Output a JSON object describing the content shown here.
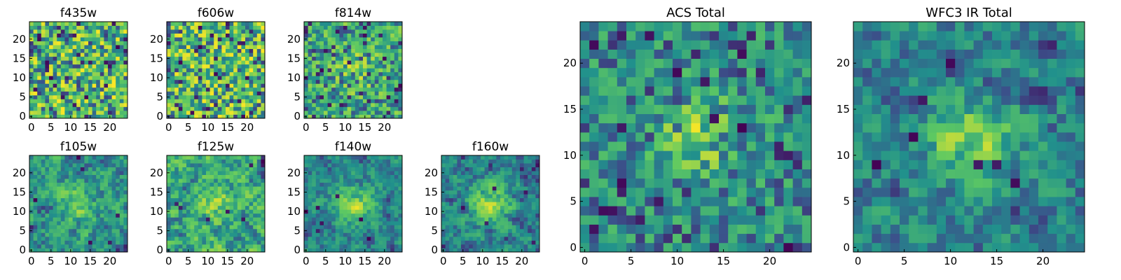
{
  "colormap": [
    "#440154",
    "#3b528b",
    "#21918c",
    "#5ec962",
    "#fde725"
  ],
  "chart_data": [
    {
      "type": "heatmap",
      "title": "f435w",
      "size": 25,
      "xticks": [
        0,
        5,
        10,
        15,
        20
      ],
      "yticks": [
        0,
        5,
        10,
        15,
        20
      ],
      "seed": 11,
      "smooth": 0,
      "blob": 0.0,
      "bias": 0.55
    },
    {
      "type": "heatmap",
      "title": "f606w",
      "size": 25,
      "xticks": [
        0,
        5,
        10,
        15,
        20
      ],
      "yticks": [
        0,
        5,
        10,
        15,
        20
      ],
      "seed": 23,
      "smooth": 0,
      "blob": 0.0,
      "bias": 0.55
    },
    {
      "type": "heatmap",
      "title": "f814w",
      "size": 25,
      "xticks": [
        0,
        5,
        10,
        15,
        20
      ],
      "yticks": [
        0,
        5,
        10,
        15,
        20
      ],
      "seed": 37,
      "smooth": 0,
      "blob": 0.15,
      "bias": 0.55
    },
    {
      "type": "heatmap",
      "title": "f105w",
      "size": 25,
      "xticks": [
        0,
        5,
        10,
        15,
        20
      ],
      "yticks": [
        0,
        5,
        10,
        15,
        20
      ],
      "seed": 41,
      "smooth": 1,
      "blob": 0.25,
      "bias": 0.5
    },
    {
      "type": "heatmap",
      "title": "f125w",
      "size": 25,
      "xticks": [
        0,
        5,
        10,
        15,
        20
      ],
      "yticks": [
        0,
        5,
        10,
        15,
        20
      ],
      "seed": 53,
      "smooth": 1,
      "blob": 0.15,
      "bias": 0.5
    },
    {
      "type": "heatmap",
      "title": "f140w",
      "size": 25,
      "xticks": [
        0,
        5,
        10,
        15,
        20
      ],
      "yticks": [
        0,
        5,
        10,
        15,
        20
      ],
      "seed": 67,
      "smooth": 1,
      "blob": 0.35,
      "bias": 0.5
    },
    {
      "type": "heatmap",
      "title": "f160w",
      "size": 25,
      "xticks": [
        0,
        5,
        10,
        15,
        20
      ],
      "yticks": [
        0,
        5,
        10,
        15,
        20
      ],
      "seed": 71,
      "smooth": 1,
      "blob": 0.35,
      "bias": 0.5
    },
    {
      "type": "heatmap",
      "title": "ACS Total",
      "size": 25,
      "xticks": [
        0,
        5,
        10,
        15,
        20
      ],
      "yticks": [
        0,
        5,
        10,
        15,
        20
      ],
      "seed": 83,
      "smooth": 0,
      "blob": 0.3,
      "bias": 0.6
    },
    {
      "type": "heatmap",
      "title": "WFC3 IR Total",
      "size": 25,
      "xticks": [
        0,
        5,
        10,
        15,
        20
      ],
      "yticks": [
        0,
        5,
        10,
        15,
        20
      ],
      "seed": 97,
      "smooth": 1,
      "blob": 0.35,
      "bias": 0.55
    }
  ]
}
